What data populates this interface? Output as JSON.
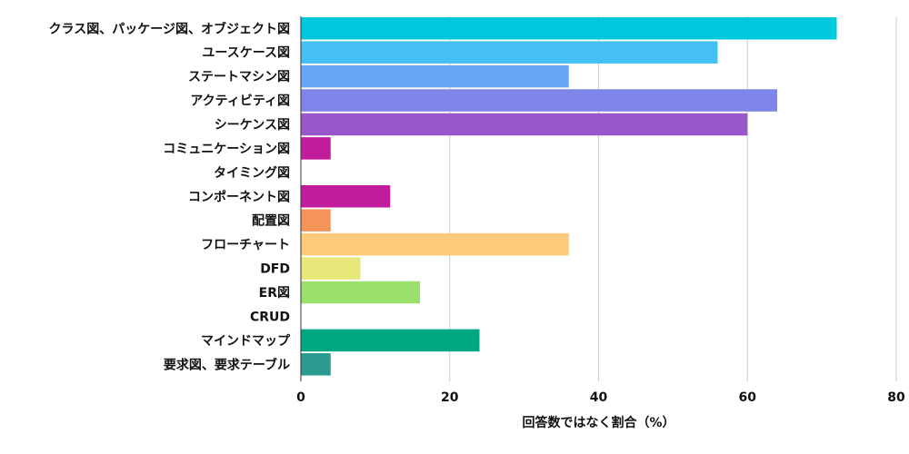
{
  "chart_data": {
    "type": "bar",
    "orientation": "horizontal",
    "categories": [
      "クラス図、パッケージ図、オブジェクト図",
      "ユースケース図",
      "ステートマシン図",
      "アクティビティ図",
      "シーケンス図",
      "コミュニケーション図",
      "タイミング図",
      "コンポーネント図",
      "配置図",
      "フローチャート",
      "DFD",
      "ER図",
      "CRUD",
      "マインドマップ",
      "要求図、要求テーブル"
    ],
    "values": [
      72,
      56,
      36,
      64,
      60,
      4,
      0,
      12,
      4,
      36,
      8,
      16,
      0,
      24,
      4
    ],
    "colors": [
      "#00c8dc",
      "#44c0f4",
      "#66a6f4",
      "#7f84e8",
      "#9858cc",
      "#c01c9c",
      "#bf1b9b",
      "#c01c9c",
      "#f49458",
      "#fcca78",
      "#e8e87a",
      "#9ce06c",
      "#4cc87a",
      "#00a882",
      "#2a9a8e"
    ],
    "title": "",
    "xlabel": "回答数ではなく割合（%）",
    "ylabel": "",
    "xlim": [
      0,
      80
    ],
    "xticks": [
      0,
      20,
      40,
      60,
      80
    ],
    "grid": true,
    "legend": "none"
  }
}
